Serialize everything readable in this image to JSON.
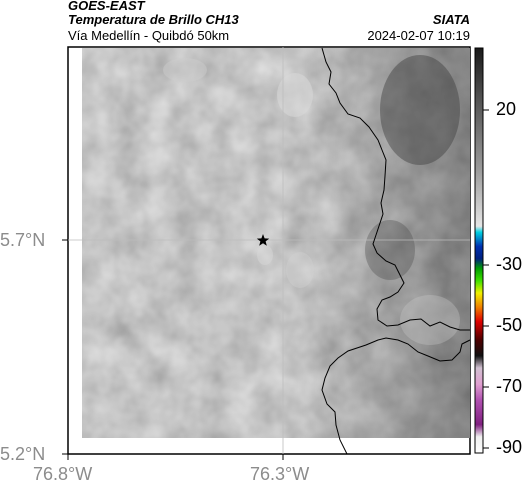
{
  "header": {
    "source": "GOES-EAST",
    "product": "Temperatura de Brillo CH13",
    "region": "Vía Medellín - Quibdó 50km",
    "org": "SIATA",
    "datetime": "2024-02-07 10:19"
  },
  "map": {
    "lat_ticks": [
      "5.7°N",
      "5.2°N"
    ],
    "lon_ticks": [
      "76.8°W",
      "76.3°W"
    ],
    "marker_icon": "star-icon"
  },
  "colorbar": {
    "ticks": [
      "20",
      "-30",
      "-50",
      "-70",
      "-90"
    ],
    "colors": {
      "top": "#202020",
      "gray_mid": "#9a9a9a",
      "light": "#e8e8e8",
      "cyan": "#00c8e0",
      "blue": "#1030c0",
      "green": "#00c000",
      "yellow": "#f0f000",
      "red": "#e00000",
      "black": "#101010",
      "magenta": "#a040a0"
    }
  }
}
